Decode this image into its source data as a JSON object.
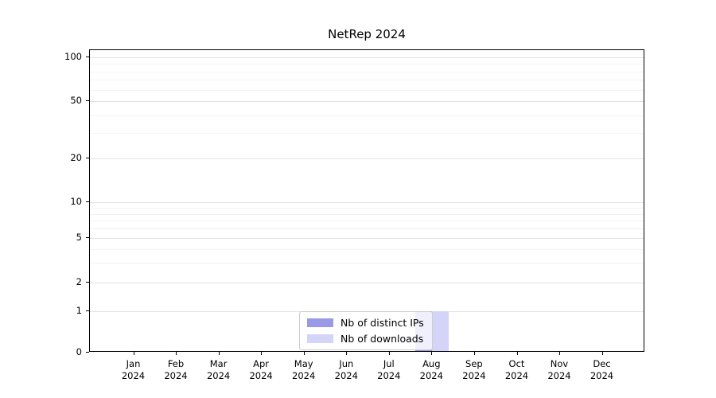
{
  "title": "NetRep 2024",
  "chart_data": {
    "type": "bar",
    "title": "NetRep 2024",
    "categories": [
      "Jan 2024",
      "Feb 2024",
      "Mar 2024",
      "Apr 2024",
      "May 2024",
      "Jun 2024",
      "Jul 2024",
      "Aug 2024",
      "Sep 2024",
      "Oct 2024",
      "Nov 2024",
      "Dec 2024"
    ],
    "x_tick_months": [
      "Jan",
      "Feb",
      "Mar",
      "Apr",
      "May",
      "Jun",
      "Jul",
      "Aug",
      "Sep",
      "Oct",
      "Nov",
      "Dec"
    ],
    "x_tick_year": "2024",
    "series": [
      {
        "name": "Nb of distinct IPs",
        "color": "#9999e8",
        "values": [
          0,
          0,
          0,
          0,
          0,
          0,
          0,
          1,
          0,
          0,
          0,
          0
        ]
      },
      {
        "name": "Nb of downloads",
        "color": "#d4d4f9",
        "values": [
          0,
          0,
          0,
          0,
          0,
          0,
          0,
          1,
          0,
          0,
          0,
          0
        ]
      }
    ],
    "yscale": "symlog",
    "ylim": [
      0,
      100
    ],
    "y_ticks": [
      0,
      1,
      2,
      5,
      10,
      20,
      50,
      100
    ],
    "y_minor_ticks": [
      3,
      4,
      6,
      7,
      8,
      9,
      30,
      40,
      60,
      70,
      80,
      90
    ],
    "grid": true,
    "legend_position": "lower center inside plot"
  },
  "legend": {
    "items": [
      {
        "label": "Nb of distinct IPs",
        "color": "#9999e8"
      },
      {
        "label": "Nb of downloads",
        "color": "#d4d4f9"
      }
    ]
  }
}
